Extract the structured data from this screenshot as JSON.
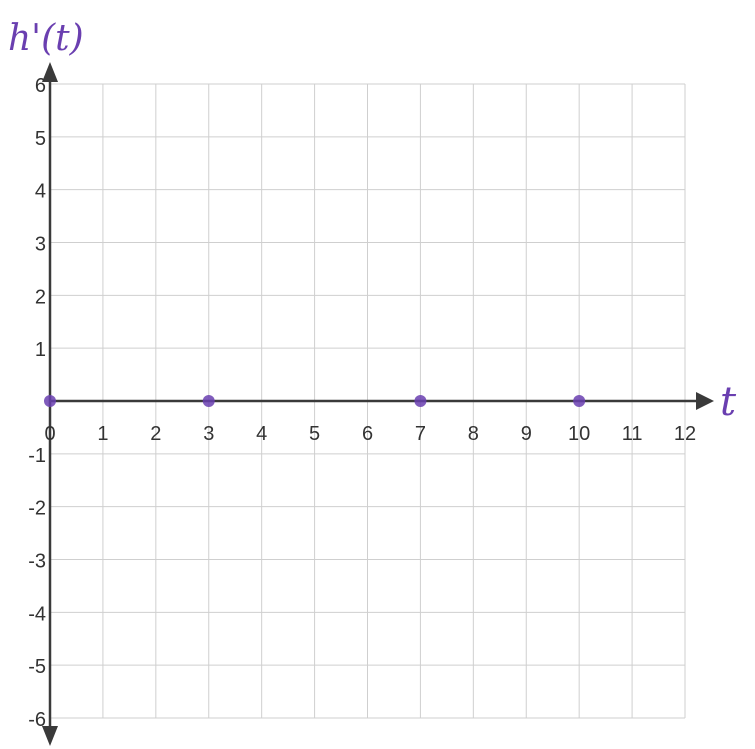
{
  "chart_data": {
    "type": "scatter",
    "xlabel": "t",
    "ylabel": "h'(t)",
    "xlim": [
      0,
      12
    ],
    "ylim": [
      -6,
      6
    ],
    "x_ticks": [
      "0",
      "1",
      "2",
      "3",
      "4",
      "5",
      "6",
      "7",
      "8",
      "9",
      "10",
      "11",
      "12"
    ],
    "y_ticks": [
      "6",
      "5",
      "4",
      "3",
      "2",
      "1",
      "-1",
      "-2",
      "-3",
      "-4",
      "-5",
      "-6"
    ],
    "grid": true,
    "series": [
      {
        "points": [
          {
            "x": 0,
            "y": 0
          },
          {
            "x": 3,
            "y": 0
          },
          {
            "x": 7,
            "y": 0
          },
          {
            "x": 10,
            "y": 0
          }
        ]
      }
    ]
  },
  "colors": {
    "grid": "#cfcfcf",
    "axis": "#3a3a3a",
    "ink": "#6a3fb0"
  }
}
